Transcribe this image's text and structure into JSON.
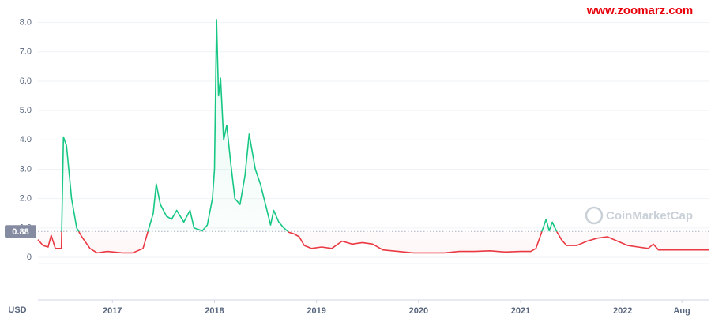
{
  "chart_data": {
    "type": "line",
    "watermark": "www.zoomarz.com",
    "brand": "CoinMarketCap",
    "y_unit": "USD",
    "baseline": 0.88,
    "xlim": [
      2016.27,
      2022.85
    ],
    "xticks": [
      {
        "value": 2017,
        "label": "2017"
      },
      {
        "value": 2018,
        "label": "2018"
      },
      {
        "value": 2019,
        "label": "2019"
      },
      {
        "value": 2020,
        "label": "2020"
      },
      {
        "value": 2021,
        "label": "2021"
      },
      {
        "value": 2022,
        "label": "2022"
      },
      {
        "value": 2022.58,
        "label": "Aug"
      }
    ],
    "ylim": [
      0,
      8.5
    ],
    "yticks": [
      0,
      {
        "value": 1,
        "label": "1.0"
      },
      {
        "value": 2,
        "label": "2.0"
      },
      {
        "value": 3,
        "label": "3.0"
      },
      {
        "value": 4,
        "label": "4.0"
      },
      {
        "value": 5,
        "label": "5.0"
      },
      {
        "value": 6,
        "label": "6.0"
      },
      {
        "value": 7,
        "label": "7.0"
      },
      {
        "value": 8,
        "label": "8.0"
      }
    ],
    "grid": true,
    "colors": {
      "above": "#16c784",
      "below": "#ea3943"
    },
    "x": [
      2016.27,
      2016.32,
      2016.37,
      2016.4,
      2016.44,
      2016.5,
      2016.52,
      2016.55,
      2016.6,
      2016.65,
      2016.7,
      2016.78,
      2016.85,
      2016.95,
      2017.1,
      2017.2,
      2017.3,
      2017.35,
      2017.4,
      2017.43,
      2017.47,
      2017.53,
      2017.58,
      2017.63,
      2017.7,
      2017.76,
      2017.8,
      2017.88,
      2017.93,
      2017.98,
      2018.0,
      2018.02,
      2018.04,
      2018.06,
      2018.09,
      2018.12,
      2018.16,
      2018.2,
      2018.25,
      2018.3,
      2018.34,
      2018.4,
      2018.45,
      2018.5,
      2018.55,
      2018.58,
      2018.63,
      2018.68,
      2018.73,
      2018.78,
      2018.83,
      2018.88,
      2018.95,
      2019.05,
      2019.15,
      2019.25,
      2019.35,
      2019.45,
      2019.55,
      2019.65,
      2019.8,
      2019.95,
      2020.1,
      2020.25,
      2020.4,
      2020.55,
      2020.7,
      2020.85,
      2021.0,
      2021.1,
      2021.15,
      2021.2,
      2021.25,
      2021.28,
      2021.31,
      2021.35,
      2021.4,
      2021.45,
      2021.55,
      2021.65,
      2021.75,
      2021.85,
      2021.95,
      2022.05,
      2022.15,
      2022.25,
      2022.3,
      2022.35,
      2022.45,
      2022.6,
      2022.75,
      2022.85
    ],
    "series": [
      {
        "values": [
          0.6,
          0.4,
          0.35,
          0.75,
          0.3,
          0.3,
          4.1,
          3.8,
          2.0,
          1.0,
          0.7,
          0.3,
          0.15,
          0.2,
          0.15,
          0.15,
          0.3,
          0.9,
          1.5,
          2.5,
          1.8,
          1.4,
          1.3,
          1.6,
          1.2,
          1.6,
          1.0,
          0.9,
          1.1,
          2.0,
          3.0,
          8.1,
          5.5,
          6.1,
          4.0,
          4.5,
          3.2,
          2.0,
          1.8,
          2.8,
          4.2,
          3.0,
          2.5,
          1.8,
          1.1,
          1.6,
          1.2,
          1.0,
          0.85,
          0.8,
          0.7,
          0.4,
          0.3,
          0.35,
          0.3,
          0.55,
          0.45,
          0.5,
          0.45,
          0.25,
          0.2,
          0.15,
          0.15,
          0.15,
          0.2,
          0.2,
          0.22,
          0.18,
          0.2,
          0.2,
          0.3,
          0.8,
          1.3,
          0.9,
          1.2,
          0.9,
          0.6,
          0.4,
          0.4,
          0.55,
          0.65,
          0.7,
          0.55,
          0.4,
          0.35,
          0.3,
          0.45,
          0.25,
          0.25,
          0.25,
          0.25,
          0.25
        ]
      }
    ]
  }
}
